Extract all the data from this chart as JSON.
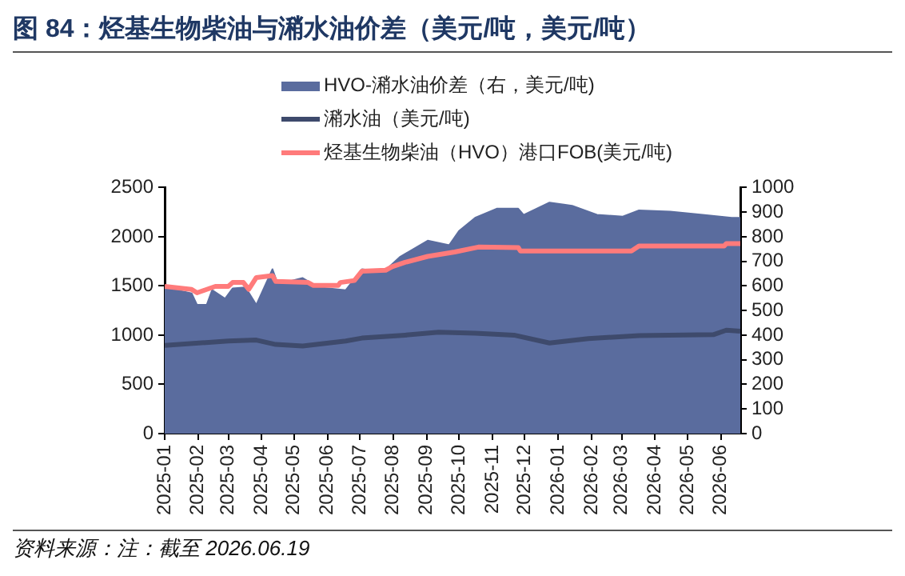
{
  "chart_data": {
    "type": "line",
    "title": "图 84：烃基生物柴油与潲水油价差（美元/吨，美元/吨）",
    "annotations": [
      "资料来源：注：截至 2026.06.19"
    ],
    "legend": "top",
    "grid": false,
    "xlim": [
      "2025-01-01",
      "2026-06-19"
    ],
    "xticks": [
      "2025-01",
      "2025-02",
      "2025-03",
      "2025-04",
      "2025-05",
      "2025-06",
      "2025-07",
      "2025-08",
      "2025-09",
      "2025-10",
      "2025-11",
      "2025-12",
      "2026-01",
      "2026-02",
      "2026-03",
      "2026-04",
      "2026-05",
      "2026-06"
    ],
    "ylim": [
      0,
      2500
    ],
    "yticks": [
      0,
      500,
      1000,
      1500,
      2000,
      2500
    ],
    "y2lim": [
      0,
      1000
    ],
    "y2ticks": [
      0,
      100,
      200,
      300,
      400,
      500,
      600,
      700,
      800,
      900,
      1000
    ],
    "series": [
      {
        "name": "HVO-潲水油价差（右，美元/吨)",
        "type": "area",
        "axis": "y2",
        "color": "#5a6c9e",
        "x": [
          "2025-01-01",
          "2025-01-26",
          "2025-01-31",
          "2025-02-09",
          "2025-02-14",
          "2025-02-26",
          "2025-03-05",
          "2025-03-17",
          "2025-03-27",
          "2025-04-11",
          "2025-04-16",
          "2025-05-09",
          "2025-05-24",
          "2025-06-18",
          "2025-07-03",
          "2025-07-23",
          "2025-08-07",
          "2025-09-02",
          "2025-09-22",
          "2025-10-01",
          "2025-10-16",
          "2025-11-05",
          "2025-11-25",
          "2025-11-30",
          "2025-12-24",
          "2026-01-14",
          "2026-02-06",
          "2026-03-02",
          "2026-03-17",
          "2026-04-15",
          "2026-05-15",
          "2026-06-11",
          "2026-06-19"
        ],
        "values": [
          594,
          570,
          523,
          523,
          583,
          548,
          590,
          594,
          523,
          668,
          607,
          632,
          594,
          583,
          668,
          657,
          717,
          784,
          766,
          823,
          877,
          914,
          914,
          889,
          939,
          926,
          889,
          882,
          907,
          902,
          889,
          877,
          877
        ]
      },
      {
        "name": "潲水油（美元/吨)",
        "type": "line",
        "color": "#3e4a6c",
        "x": [
          "2025-01-01",
          "2025-03-01",
          "2025-03-27",
          "2025-04-14",
          "2025-05-09",
          "2025-06-18",
          "2025-07-03",
          "2025-08-12",
          "2025-09-12",
          "2025-10-16",
          "2025-11-21",
          "2025-12-24",
          "2026-01-29",
          "2026-03-17",
          "2026-05-25",
          "2026-06-06",
          "2026-06-19"
        ],
        "values": [
          895,
          940,
          950,
          905,
          890,
          940,
          970,
          1000,
          1030,
          1020,
          1000,
          920,
          965,
          995,
          1005,
          1050,
          1040
        ]
      },
      {
        "name": "烃基生物柴油（HVO）港口FOB(美元/吨)",
        "type": "line",
        "color": "#ff7b7b",
        "x": [
          "2025-01-01",
          "2025-01-26",
          "2025-01-31",
          "2025-02-09",
          "2025-02-17",
          "2025-03-01",
          "2025-03-05",
          "2025-03-15",
          "2025-03-20",
          "2025-03-27",
          "2025-04-11",
          "2025-04-14",
          "2025-05-14",
          "2025-05-19",
          "2025-06-11",
          "2025-06-13",
          "2025-06-26",
          "2025-07-03",
          "2025-07-25",
          "2025-07-31",
          "2025-08-12",
          "2025-09-02",
          "2025-09-27",
          "2025-10-19",
          "2025-11-25",
          "2025-11-27",
          "2026-03-10",
          "2026-03-17",
          "2026-06-04",
          "2026-06-06",
          "2026-06-19"
        ],
        "values": [
          1495,
          1465,
          1430,
          1465,
          1495,
          1495,
          1535,
          1535,
          1465,
          1585,
          1605,
          1545,
          1535,
          1505,
          1505,
          1535,
          1555,
          1650,
          1660,
          1695,
          1740,
          1800,
          1845,
          1895,
          1890,
          1855,
          1855,
          1905,
          1905,
          1930,
          1930
        ]
      }
    ]
  }
}
